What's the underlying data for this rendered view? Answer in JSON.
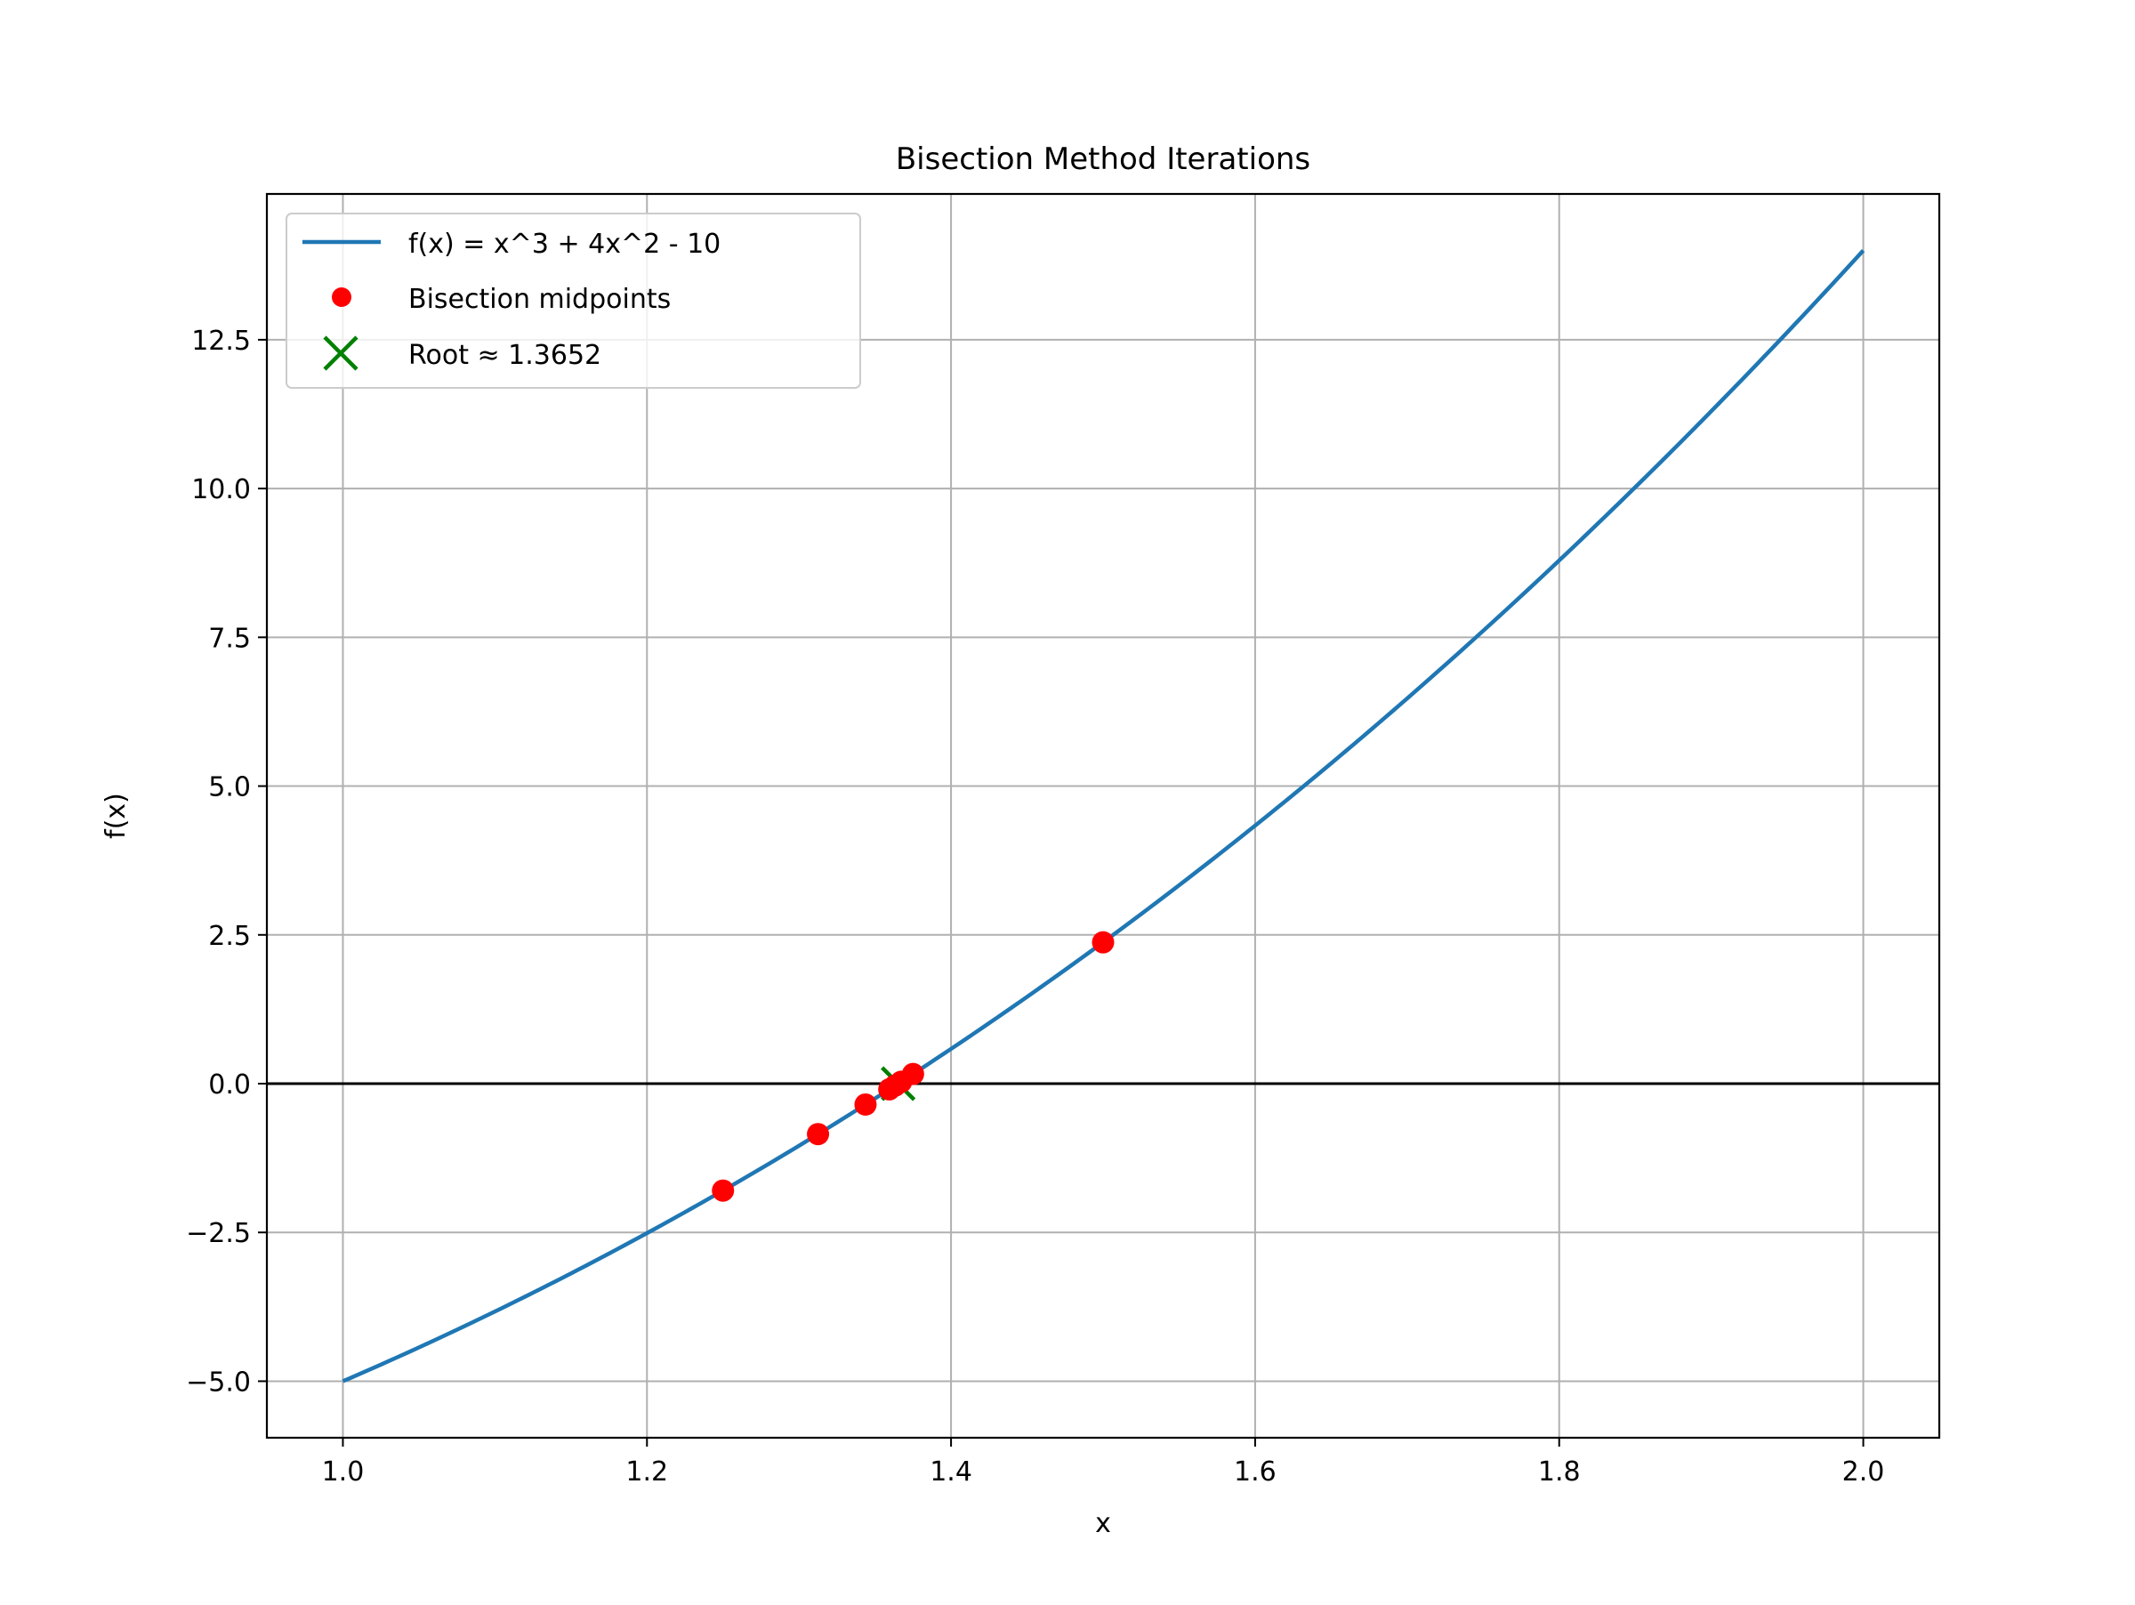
{
  "chart_data": {
    "type": "line",
    "title": "Bisection Method Iterations",
    "xlabel": "x",
    "ylabel": "f(x)",
    "xlim": [
      0.95,
      2.05
    ],
    "ylim": [
      -5.95,
      14.95
    ],
    "xticks": [
      1.0,
      1.2,
      1.4,
      1.6,
      1.8,
      2.0
    ],
    "xtick_labels": [
      "1.0",
      "1.2",
      "1.4",
      "1.6",
      "1.8",
      "2.0"
    ],
    "yticks": [
      -5.0,
      -2.5,
      0.0,
      2.5,
      5.0,
      7.5,
      10.0,
      12.5
    ],
    "ytick_labels": [
      "−5.0",
      "−2.5",
      "0.0",
      "2.5",
      "5.0",
      "7.5",
      "10.0",
      "12.5"
    ],
    "grid": true,
    "legend_position": "top-left",
    "zero_line": {
      "y": 0.0,
      "color": "#000000"
    },
    "series": [
      {
        "name": "f(x) = x^3 + 4x^2 - 10",
        "kind": "line",
        "color": "#1f77b4",
        "function": "x^3 + 4x^2 - 10",
        "x": [
          1.0,
          1.05,
          1.1,
          1.15,
          1.2,
          1.25,
          1.3,
          1.35,
          1.4,
          1.45,
          1.5,
          1.55,
          1.6,
          1.65,
          1.7,
          1.75,
          1.8,
          1.85,
          1.9,
          1.95,
          2.0
        ],
        "y": [
          -5.0,
          -4.4325,
          -3.829,
          -3.1885,
          -2.512,
          -1.7969,
          -1.043,
          -0.2496,
          0.584,
          1.4586,
          2.375,
          3.3339,
          4.336,
          5.3821,
          6.473,
          7.6094,
          8.792,
          10.0216,
          11.299,
          12.6249,
          14.0
        ]
      },
      {
        "name": "Bisection midpoints",
        "kind": "scatter",
        "color": "#ff0000",
        "marker": "circle",
        "x": [
          1.5,
          1.25,
          1.375,
          1.3125,
          1.34375,
          1.359375,
          1.3671875,
          1.36328125
        ],
        "y": [
          2.375,
          -1.797,
          0.162,
          -0.848,
          -0.351,
          -0.096,
          0.032,
          -0.032
        ]
      },
      {
        "name": "Root ≈ 1.3652",
        "kind": "scatter",
        "color": "#008000",
        "marker": "x",
        "x": [
          1.3652
        ],
        "y": [
          0.0
        ]
      }
    ]
  }
}
